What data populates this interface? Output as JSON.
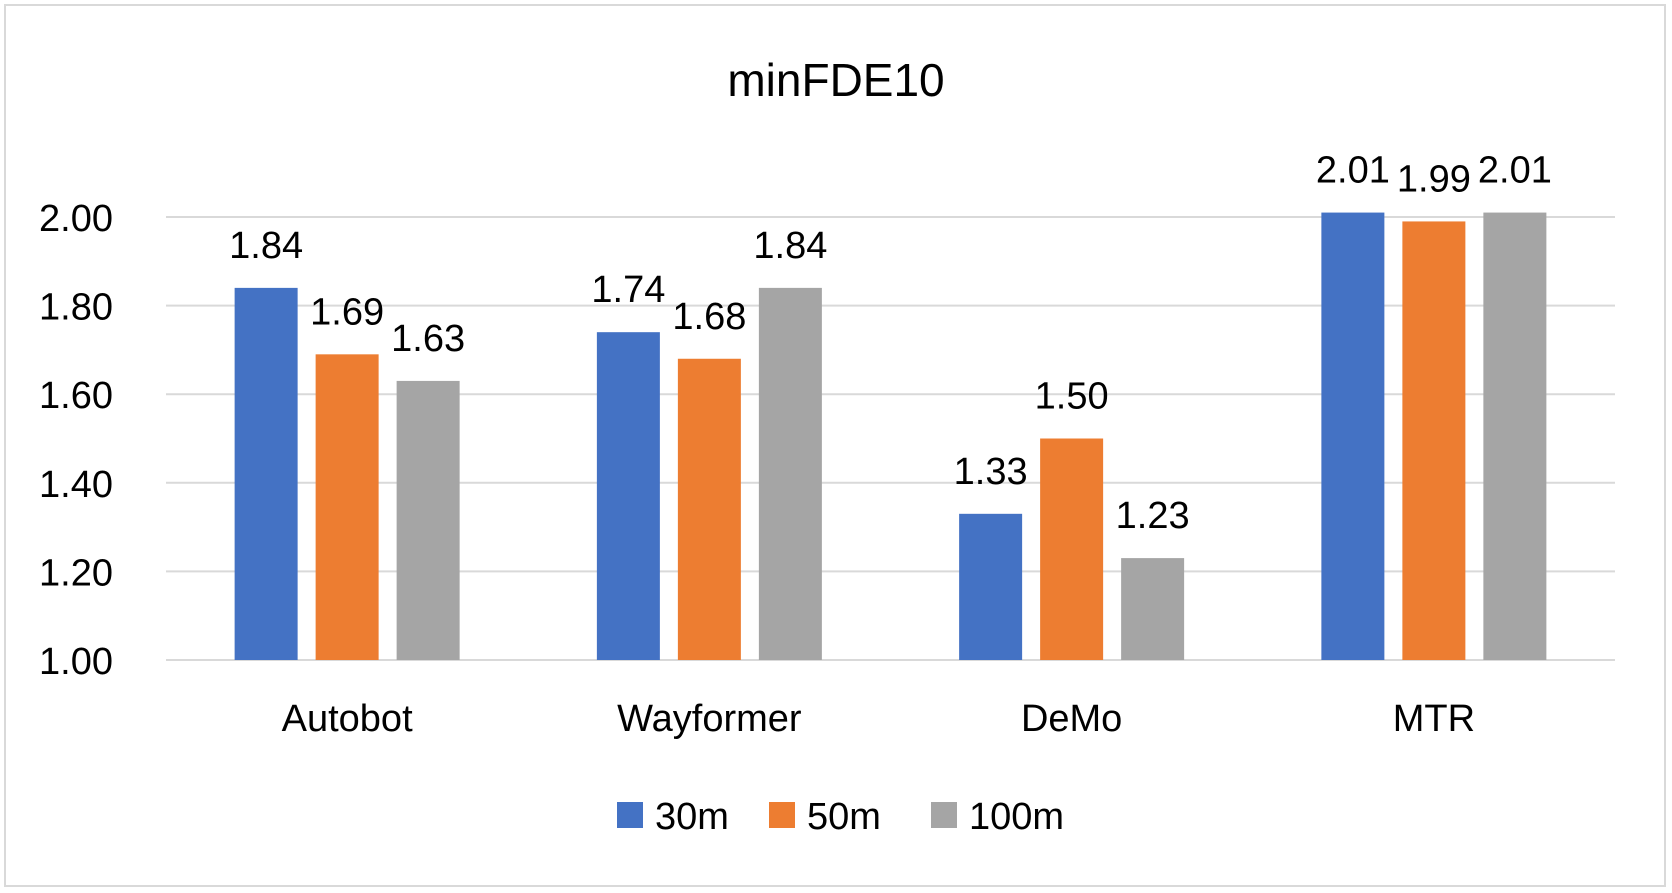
{
  "chart_data": {
    "type": "bar",
    "title": "minFDE10",
    "xlabel": "",
    "ylabel": "",
    "categories": [
      "Autobot",
      "Wayformer",
      "DeMo",
      "MTR"
    ],
    "series": [
      {
        "name": "30m",
        "color": "#4472c4",
        "values": [
          1.84,
          1.74,
          1.33,
          2.01
        ],
        "labels": [
          "1.84",
          "1.74",
          "1.33",
          "2.01"
        ]
      },
      {
        "name": "50m",
        "color": "#ed7d31",
        "values": [
          1.69,
          1.68,
          1.5,
          1.99
        ],
        "labels": [
          "1.69",
          "1.68",
          "1.50",
          "1.99"
        ]
      },
      {
        "name": "100m",
        "color": "#a5a5a5",
        "values": [
          1.63,
          1.84,
          1.23,
          2.01
        ],
        "labels": [
          "1.63",
          "1.84",
          "1.23",
          "2.01"
        ]
      }
    ],
    "ylim": [
      1.0,
      2.0
    ],
    "yticks": [
      "1.00",
      "1.20",
      "1.40",
      "1.60",
      "1.80",
      "2.00"
    ],
    "ytick_values": [
      1.0,
      1.2,
      1.4,
      1.6,
      1.8,
      2.0
    ],
    "grid": true,
    "gridline_color": "#d9d9d9",
    "legend_position": "bottom"
  }
}
